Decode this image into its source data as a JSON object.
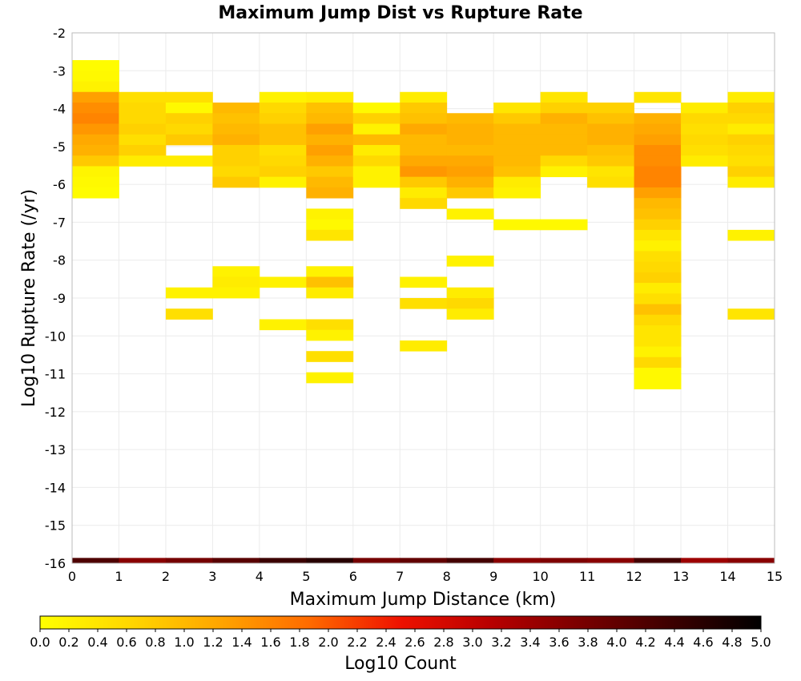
{
  "chart_data": {
    "type": "heatmap",
    "title": "Maximum Jump Dist vs Rupture Rate",
    "xlabel": "Maximum Jump Distance (km)",
    "ylabel": "Log10 Rupture Rate (/yr)",
    "xlim": [
      0,
      15
    ],
    "ylim": [
      -16,
      -2
    ],
    "x_ticks": [
      "0",
      "1",
      "2",
      "3",
      "4",
      "5",
      "6",
      "7",
      "8",
      "9",
      "10",
      "11",
      "12",
      "13",
      "14",
      "15"
    ],
    "y_ticks": [
      "-2",
      "-3",
      "-4",
      "-5",
      "-6",
      "-7",
      "-8",
      "-9",
      "-10",
      "-11",
      "-12",
      "-13",
      "-14",
      "-15",
      "-16"
    ],
    "x_bin_width": 1,
    "y_bin_height": 0.28,
    "colorbar": {
      "label": "Log10 Count",
      "min": 0.0,
      "max": 5.0,
      "ticks": [
        "0.0",
        "0.2",
        "0.4",
        "0.6",
        "0.8",
        "1.0",
        "1.2",
        "1.4",
        "1.6",
        "1.8",
        "2.0",
        "2.2",
        "2.4",
        "2.6",
        "2.8",
        "3.0",
        "3.2",
        "3.4",
        "3.6",
        "3.8",
        "4.0",
        "4.2",
        "4.4",
        "4.6",
        "4.8",
        "5.0"
      ],
      "colors": [
        "#ffff00",
        "#ffd700",
        "#ffa500",
        "#ff6a00",
        "#ee1100",
        "#b80000",
        "#7a0000",
        "#3d0000",
        "#000000"
      ]
    },
    "cells": [
      [
        0,
        -2.86,
        0.05
      ],
      [
        0,
        -3.14,
        0.1
      ],
      [
        0,
        -3.42,
        0.2
      ],
      [
        0,
        -3.7,
        1.3
      ],
      [
        0,
        -3.98,
        1.5
      ],
      [
        0,
        -4.26,
        1.6
      ],
      [
        0,
        -4.54,
        1.4
      ],
      [
        0,
        -4.82,
        1.2
      ],
      [
        0,
        -5.1,
        1.1
      ],
      [
        0,
        -5.38,
        0.8
      ],
      [
        0,
        -5.66,
        0.15
      ],
      [
        0,
        -5.94,
        0.1
      ],
      [
        0,
        -6.22,
        0.05
      ],
      [
        1,
        -3.7,
        0.5
      ],
      [
        1,
        -3.98,
        0.6
      ],
      [
        1,
        -4.26,
        0.6
      ],
      [
        1,
        -4.54,
        0.7
      ],
      [
        1,
        -4.82,
        0.5
      ],
      [
        1,
        -5.1,
        0.7
      ],
      [
        1,
        -5.38,
        0.3
      ],
      [
        2,
        -3.7,
        0.5
      ],
      [
        2,
        -3.98,
        0.1
      ],
      [
        2,
        -4.26,
        0.7
      ],
      [
        2,
        -4.54,
        0.6
      ],
      [
        2,
        -4.82,
        0.8
      ],
      [
        2,
        -5.38,
        0.3
      ],
      [
        2,
        -8.86,
        0.2
      ],
      [
        2,
        -9.42,
        0.5
      ],
      [
        3,
        -3.98,
        1.0
      ],
      [
        3,
        -4.26,
        0.9
      ],
      [
        3,
        -4.54,
        1.0
      ],
      [
        3,
        -4.82,
        1.1
      ],
      [
        3,
        -5.1,
        0.7
      ],
      [
        3,
        -5.38,
        0.7
      ],
      [
        3,
        -5.66,
        0.6
      ],
      [
        3,
        -5.94,
        0.8
      ],
      [
        3,
        -8.3,
        0.2
      ],
      [
        3,
        -8.58,
        0.3
      ],
      [
        3,
        -8.86,
        0.2
      ],
      [
        4,
        -3.7,
        0.2
      ],
      [
        4,
        -3.98,
        0.6
      ],
      [
        4,
        -4.26,
        0.7
      ],
      [
        4,
        -4.54,
        0.9
      ],
      [
        4,
        -4.82,
        0.9
      ],
      [
        4,
        -5.1,
        0.5
      ],
      [
        4,
        -5.38,
        0.6
      ],
      [
        4,
        -5.66,
        0.7
      ],
      [
        4,
        -5.94,
        0.2
      ],
      [
        4,
        -8.58,
        0.2
      ],
      [
        4,
        -9.7,
        0.2
      ],
      [
        5,
        -3.7,
        0.3
      ],
      [
        5,
        -3.98,
        0.9
      ],
      [
        5,
        -4.26,
        1.0
      ],
      [
        5,
        -4.54,
        1.3
      ],
      [
        5,
        -4.82,
        1.1
      ],
      [
        5,
        -5.1,
        1.3
      ],
      [
        5,
        -5.38,
        1.1
      ],
      [
        5,
        -5.66,
        0.8
      ],
      [
        5,
        -5.94,
        1.0
      ],
      [
        5,
        -6.22,
        1.1
      ],
      [
        5,
        -6.78,
        0.2
      ],
      [
        5,
        -7.06,
        0.1
      ],
      [
        5,
        -7.34,
        0.4
      ],
      [
        5,
        -8.3,
        0.2
      ],
      [
        5,
        -8.58,
        0.9
      ],
      [
        5,
        -8.86,
        0.3
      ],
      [
        5,
        -9.7,
        0.5
      ],
      [
        5,
        -9.98,
        0.2
      ],
      [
        5,
        -10.54,
        0.5
      ],
      [
        5,
        -11.1,
        0.2
      ],
      [
        6,
        -3.98,
        0.1
      ],
      [
        6,
        -4.26,
        0.7
      ],
      [
        6,
        -4.54,
        0.2
      ],
      [
        6,
        -4.82,
        1.0
      ],
      [
        6,
        -5.1,
        0.3
      ],
      [
        6,
        -5.38,
        0.6
      ],
      [
        6,
        -5.66,
        0.2
      ],
      [
        6,
        -5.94,
        0.2
      ],
      [
        7,
        -3.7,
        0.3
      ],
      [
        7,
        -3.98,
        0.8
      ],
      [
        7,
        -4.26,
        0.9
      ],
      [
        7,
        -4.54,
        1.2
      ],
      [
        7,
        -4.82,
        1.0
      ],
      [
        7,
        -5.1,
        1.0
      ],
      [
        7,
        -5.38,
        1.2
      ],
      [
        7,
        -5.66,
        1.4
      ],
      [
        7,
        -5.94,
        0.8
      ],
      [
        7,
        -6.22,
        0.3
      ],
      [
        7,
        -6.5,
        0.6
      ],
      [
        7,
        -8.58,
        0.2
      ],
      [
        7,
        -9.14,
        0.5
      ],
      [
        7,
        -10.26,
        0.3
      ],
      [
        8,
        -4.26,
        1.0
      ],
      [
        8,
        -4.54,
        1.1
      ],
      [
        8,
        -4.82,
        1.1
      ],
      [
        8,
        -5.1,
        1.0
      ],
      [
        8,
        -5.38,
        1.2
      ],
      [
        8,
        -5.66,
        1.3
      ],
      [
        8,
        -5.94,
        1.1
      ],
      [
        8,
        -6.22,
        0.8
      ],
      [
        8,
        -6.78,
        0.2
      ],
      [
        8,
        -8.02,
        0.2
      ],
      [
        8,
        -8.86,
        0.3
      ],
      [
        8,
        -9.14,
        0.6
      ],
      [
        8,
        -9.42,
        0.3
      ],
      [
        9,
        -3.98,
        0.4
      ],
      [
        9,
        -4.26,
        0.8
      ],
      [
        9,
        -4.54,
        1.0
      ],
      [
        9,
        -4.82,
        1.0
      ],
      [
        9,
        -5.1,
        1.0
      ],
      [
        9,
        -5.38,
        1.0
      ],
      [
        9,
        -5.66,
        0.9
      ],
      [
        9,
        -5.94,
        0.3
      ],
      [
        9,
        -6.22,
        0.2
      ],
      [
        9,
        -7.06,
        0.1
      ],
      [
        10,
        -3.7,
        0.4
      ],
      [
        10,
        -3.98,
        0.7
      ],
      [
        10,
        -4.26,
        1.1
      ],
      [
        10,
        -4.54,
        1.0
      ],
      [
        10,
        -4.82,
        1.0
      ],
      [
        10,
        -5.1,
        1.0
      ],
      [
        10,
        -5.38,
        0.6
      ],
      [
        10,
        -5.66,
        0.2
      ],
      [
        10,
        -7.06,
        0.1
      ],
      [
        11,
        -3.98,
        0.7
      ],
      [
        11,
        -4.26,
        0.9
      ],
      [
        11,
        -4.54,
        1.1
      ],
      [
        11,
        -4.82,
        1.1
      ],
      [
        11,
        -5.1,
        0.9
      ],
      [
        11,
        -5.38,
        0.8
      ],
      [
        11,
        -5.66,
        0.4
      ],
      [
        11,
        -5.94,
        0.5
      ],
      [
        12,
        -3.7,
        0.4
      ],
      [
        12,
        -4.26,
        1.1
      ],
      [
        12,
        -4.54,
        1.2
      ],
      [
        12,
        -4.82,
        1.3
      ],
      [
        12,
        -5.1,
        1.5
      ],
      [
        12,
        -5.38,
        1.5
      ],
      [
        12,
        -5.66,
        1.6
      ],
      [
        12,
        -5.94,
        1.6
      ],
      [
        12,
        -6.22,
        1.3
      ],
      [
        12,
        -6.5,
        1.0
      ],
      [
        12,
        -6.78,
        0.9
      ],
      [
        12,
        -7.06,
        0.7
      ],
      [
        12,
        -7.34,
        0.4
      ],
      [
        12,
        -7.62,
        0.2
      ],
      [
        12,
        -7.9,
        0.5
      ],
      [
        12,
        -8.18,
        0.6
      ],
      [
        12,
        -8.46,
        0.7
      ],
      [
        12,
        -8.74,
        0.3
      ],
      [
        12,
        -9.02,
        0.5
      ],
      [
        12,
        -9.3,
        0.9
      ],
      [
        12,
        -9.58,
        0.6
      ],
      [
        12,
        -9.86,
        0.4
      ],
      [
        12,
        -10.14,
        0.4
      ],
      [
        12,
        -10.42,
        0.2
      ],
      [
        12,
        -10.7,
        0.6
      ],
      [
        12,
        -10.98,
        0.1
      ],
      [
        12,
        -11.26,
        0.1
      ],
      [
        13,
        -3.98,
        0.3
      ],
      [
        13,
        -4.26,
        0.6
      ],
      [
        13,
        -4.54,
        0.5
      ],
      [
        13,
        -4.82,
        0.6
      ],
      [
        13,
        -5.1,
        0.5
      ],
      [
        13,
        -5.38,
        0.3
      ],
      [
        14,
        -3.7,
        0.3
      ],
      [
        14,
        -3.98,
        0.7
      ],
      [
        14,
        -4.26,
        0.6
      ],
      [
        14,
        -4.54,
        0.3
      ],
      [
        14,
        -4.82,
        0.7
      ],
      [
        14,
        -5.1,
        0.6
      ],
      [
        14,
        -5.38,
        0.5
      ],
      [
        14,
        -5.66,
        0.7
      ],
      [
        14,
        -5.94,
        0.3
      ],
      [
        14,
        -7.34,
        0.2
      ],
      [
        14,
        -9.42,
        0.4
      ],
      [
        0,
        -16.0,
        4.2
      ],
      [
        1,
        -16.0,
        3.6
      ],
      [
        2,
        -16.0,
        3.8
      ],
      [
        3,
        -16.0,
        4.1
      ],
      [
        4,
        -16.0,
        4.4
      ],
      [
        5,
        -16.0,
        4.6
      ],
      [
        6,
        -16.0,
        3.8
      ],
      [
        7,
        -16.0,
        4.0
      ],
      [
        8,
        -16.0,
        4.3
      ],
      [
        9,
        -16.0,
        3.6
      ],
      [
        10,
        -16.0,
        3.7
      ],
      [
        11,
        -16.0,
        3.6
      ],
      [
        12,
        -16.0,
        4.3
      ],
      [
        13,
        -16.0,
        3.4
      ],
      [
        14,
        -16.0,
        3.6
      ]
    ]
  }
}
